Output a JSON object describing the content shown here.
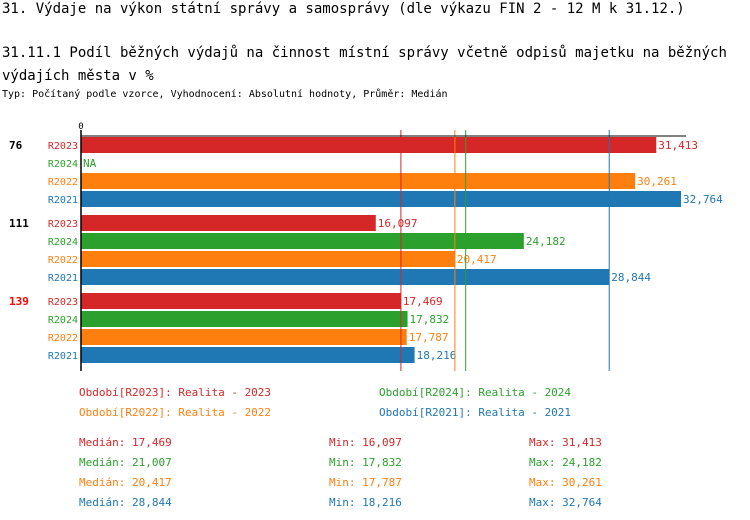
{
  "header": {
    "title": "31. Výdaje na výkon státní správy a samosprávy (dle výkazu FIN 2 - 12 M k 31.12.)",
    "subtitle": "31.11.1 Podíl běžných výdajů na činnost místní správy včetně odpisů majetku na běžných výdajích města v %",
    "type_line": "Typ: Počítaný podle vzorce, Vyhodnocení: Absolutní hodnoty, Průměr: Medián"
  },
  "chart_data": {
    "type": "bar",
    "orientation": "horizontal",
    "x_tick_label": "0",
    "xlim": [
      0,
      32764
    ],
    "groups": [
      {
        "label": "76",
        "label_color": "#000000"
      },
      {
        "label": "111",
        "label_color": "#000000"
      },
      {
        "label": "139",
        "label_color": "#ff0000"
      }
    ],
    "series": [
      {
        "name": "R2023",
        "color": "#d62728",
        "values": [
          31413,
          16097,
          17469
        ],
        "labels": [
          "31,413",
          "16,097",
          "17,469"
        ],
        "median": 17469
      },
      {
        "name": "R2024",
        "color": "#2ca02c",
        "values": [
          null,
          24182,
          17832
        ],
        "labels": [
          "NA",
          "24,182",
          "17,832"
        ],
        "median": 21007
      },
      {
        "name": "R2022",
        "color": "#ff7f0e",
        "values": [
          30261,
          20417,
          17787
        ],
        "labels": [
          "30,261",
          "20,417",
          "17,787"
        ],
        "median": 20417
      },
      {
        "name": "R2021",
        "color": "#1f77b4",
        "values": [
          32764,
          28844,
          18216
        ],
        "labels": [
          "32,764",
          "28,844",
          "18,216"
        ],
        "median": 28844
      }
    ]
  },
  "legend": [
    {
      "text": "Období[R2023]: Realita - 2023",
      "color": "#d62728"
    },
    {
      "text": "Období[R2024]: Realita - 2024",
      "color": "#2ca02c"
    },
    {
      "text": "Období[R2022]: Realita - 2022",
      "color": "#ff7f0e"
    },
    {
      "text": "Období[R2021]: Realita - 2021",
      "color": "#1f77b4"
    }
  ],
  "stats": [
    {
      "median": "Medián: 17,469",
      "min": "Min: 16,097",
      "max": "Max: 31,413",
      "color": "#d62728"
    },
    {
      "median": "Medián: 21,007",
      "min": "Min: 17,832",
      "max": "Max: 24,182",
      "color": "#2ca02c"
    },
    {
      "median": "Medián: 20,417",
      "min": "Min: 17,787",
      "max": "Max: 30,261",
      "color": "#ff7f0e"
    },
    {
      "median": "Medián: 28,844",
      "min": "Min: 18,216",
      "max": "Max: 32,764",
      "color": "#1f77b4"
    }
  ]
}
